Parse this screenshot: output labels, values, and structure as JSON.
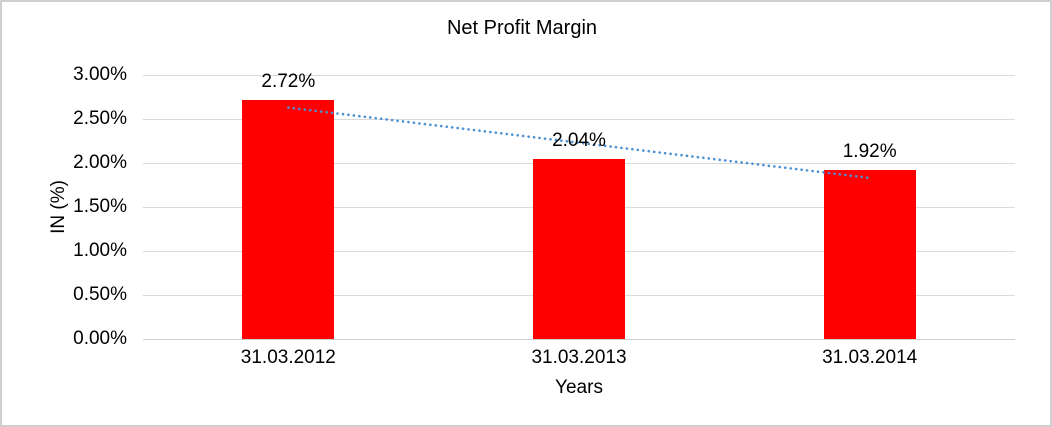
{
  "frame": {
    "background": "#ffffff",
    "border_color": "#cfcfcf"
  },
  "chart_data": {
    "type": "bar",
    "title": "Net Profit Margin",
    "xlabel": "Years",
    "ylabel": "IN (%)",
    "categories": [
      "31.03.2012",
      "31.03.2013",
      "31.03.2014"
    ],
    "values": [
      2.72,
      2.04,
      1.92
    ],
    "value_labels": [
      "2.72%",
      "2.04%",
      "1.92%"
    ],
    "ylim": [
      0,
      3
    ],
    "y_ticks": [
      0,
      0.5,
      1,
      1.5,
      2,
      2.5,
      3
    ],
    "y_tick_labels": [
      "0.00%",
      "0.50%",
      "1.00%",
      "1.50%",
      "2.00%",
      "2.50%",
      "3.00%"
    ],
    "grid": true,
    "legend": "none",
    "bar_color": "#ff0000",
    "gridline_color": "#dadada",
    "axis_line_color": "#d0d0d0",
    "trendline": {
      "type": "linear",
      "style": "dotted",
      "color": "#4a90d2",
      "start_value": 2.63,
      "end_value": 1.83
    }
  }
}
